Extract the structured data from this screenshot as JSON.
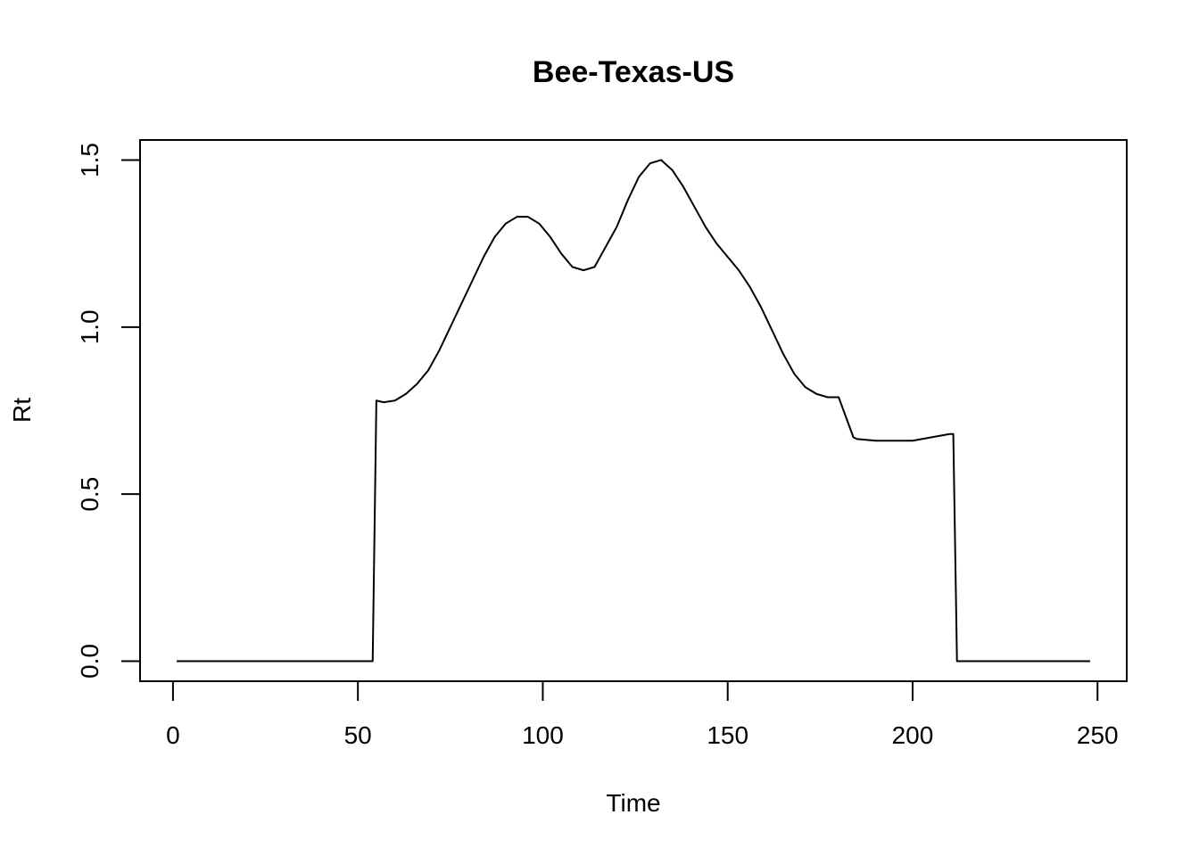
{
  "chart_data": {
    "type": "line",
    "title": "Bee-Texas-US",
    "xlabel": "Time",
    "ylabel": "Rt",
    "xlim": [
      -8.9,
      257.9
    ],
    "ylim": [
      -0.06,
      1.56
    ],
    "x_ticks": [
      0,
      50,
      100,
      150,
      200,
      250
    ],
    "x_tick_labels": [
      "0",
      "50",
      "100",
      "150",
      "200",
      "250"
    ],
    "y_ticks": [
      0.0,
      0.5,
      1.0,
      1.5
    ],
    "y_tick_labels": [
      "0.0",
      "0.5",
      "1.0",
      "1.5"
    ],
    "grid": false,
    "line_color": "#000000",
    "series": [
      {
        "x": [
          1,
          10,
          20,
          30,
          40,
          50,
          54,
          55,
          57,
          60,
          63,
          66,
          69,
          72,
          75,
          78,
          81,
          84,
          87,
          90,
          93,
          96,
          99,
          102,
          105,
          108,
          111,
          114,
          117,
          120,
          123,
          126,
          129,
          132,
          135,
          138,
          141,
          144,
          147,
          150,
          153,
          156,
          159,
          162,
          165,
          168,
          171,
          174,
          177,
          180,
          184,
          185,
          190,
          195,
          200,
          205,
          210,
          211,
          212,
          220,
          230,
          240,
          248
        ],
        "y": [
          0.0,
          0.0,
          0.0,
          0.0,
          0.0,
          0.0,
          0.0,
          0.78,
          0.775,
          0.78,
          0.8,
          0.83,
          0.87,
          0.93,
          1.0,
          1.07,
          1.14,
          1.21,
          1.27,
          1.31,
          1.33,
          1.33,
          1.31,
          1.27,
          1.22,
          1.18,
          1.17,
          1.18,
          1.24,
          1.3,
          1.38,
          1.45,
          1.49,
          1.5,
          1.47,
          1.42,
          1.36,
          1.3,
          1.25,
          1.21,
          1.17,
          1.12,
          1.06,
          0.99,
          0.92,
          0.86,
          0.82,
          0.8,
          0.79,
          0.79,
          0.67,
          0.665,
          0.66,
          0.66,
          0.66,
          0.67,
          0.68,
          0.68,
          0.0,
          0.0,
          0.0,
          0.0,
          0.0
        ]
      }
    ]
  }
}
